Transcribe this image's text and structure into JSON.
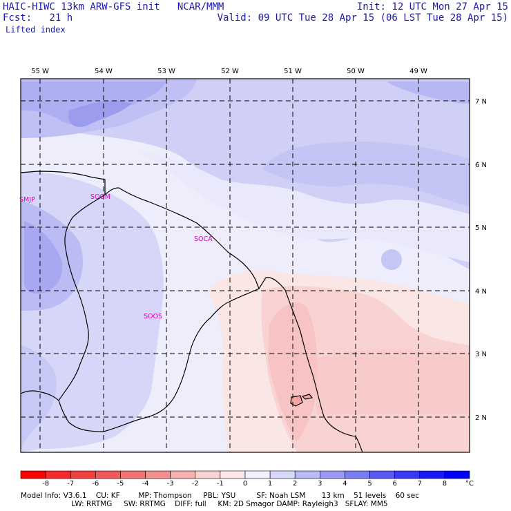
{
  "header": {
    "model_title": "HAIC-HIWC 13km ARW-GFS init   NCAR/MMM",
    "init": "Init: 12 UTC Mon 27 Apr 15",
    "fcst": "Fcst:   21 h",
    "valid": "Valid: 09 UTC Tue 28 Apr 15 (06 LST Tue 28 Apr 15)",
    "field": "Lifted index"
  },
  "lon_labels": [
    "55 W",
    "54 W",
    "53 W",
    "52 W",
    "51 W",
    "50 W",
    "49 W"
  ],
  "lat_labels": [
    "7 N",
    "6 N",
    "5 N",
    "4 N",
    "3 N",
    "2 N"
  ],
  "stations": [
    "SMJP",
    "SOGM",
    "SOCA",
    "SOOS"
  ],
  "colorbar": {
    "labels": [
      "-8",
      "-7",
      "-6",
      "-5",
      "-4",
      "-3",
      "-2",
      "-1",
      "0",
      "1",
      "2",
      "3",
      "4",
      "5",
      "6",
      "7",
      "8"
    ],
    "unit": "°C",
    "colors": [
      "#ff0000",
      "#f62a2a",
      "#f04040",
      "#ee5a5a",
      "#ef7373",
      "#f29090",
      "#f6b0b0",
      "#fad2d2",
      "#fde9e9",
      "#f1f1fb",
      "#d8d8f8",
      "#b9b9f6",
      "#9a9af3",
      "#7c7cf1",
      "#5a5af1",
      "#3a3af4",
      "#1a1af8",
      "#0000ff"
    ]
  },
  "model_info": {
    "line1": "Model Info: V3.6.1    CU: KF        MP: Thompson     PBL: YSU         SF: Noah LSM       13 km    51 levels    60 sec",
    "line2": "                      LW: RRTMG     SW: RRTMG    DIFF: full     KM: 2D Smagor DAMP: Rayleigh3   SFLAY: MM5"
  }
}
